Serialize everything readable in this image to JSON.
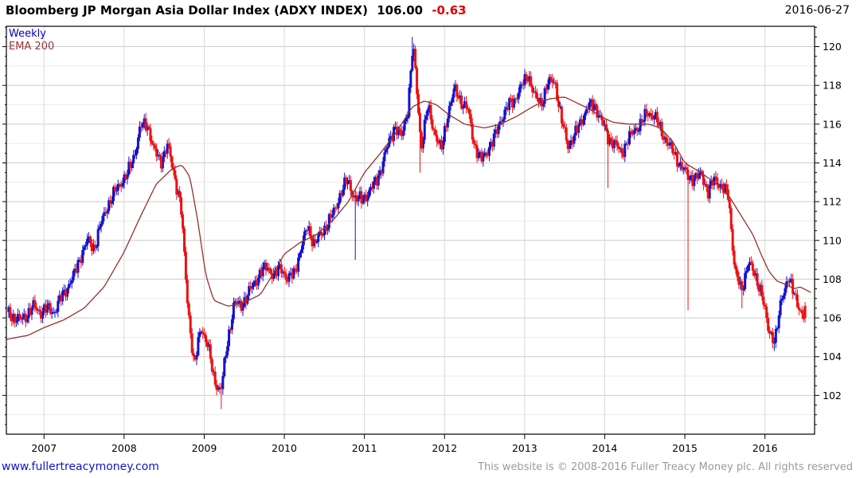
{
  "header": {
    "title": "Bloomberg JP Morgan Asia Dollar Index (ADXY INDEX)",
    "last_price": "106.00",
    "change": "-0.63",
    "date": "2016-06-27"
  },
  "legend": {
    "series_label": "Weekly",
    "ema_label": "EMA 200"
  },
  "footer": {
    "link": "www.fullertreacymoney.com",
    "copyright": "This website is © 2008-2016 Fuller Treacy Money plc. All rights reserved"
  },
  "colors": {
    "up": "#1212cf",
    "down": "#ee1111",
    "ema": "#96302c",
    "grid_minor": "#ebebeb",
    "grid_major": "#cccccc",
    "grid_vert": "#d8d8d8",
    "axis": "#000000",
    "link": "#1414cc",
    "copyright": "#9a9a9a",
    "change": "#e00000"
  },
  "chart_data": {
    "type": "candlestick",
    "title": "Bloomberg JP Morgan Asia Dollar Index (ADXY INDEX)",
    "timeframe": "Weekly",
    "overlay": "EMA 200",
    "last_close": 106.0,
    "last_change": -0.63,
    "as_of_date": "2016-06-27",
    "x_ticks": [
      2007,
      2008,
      2009,
      2010,
      2011,
      2012,
      2013,
      2014,
      2015,
      2016
    ],
    "y_ticks": [
      102,
      104,
      106,
      108,
      110,
      112,
      114,
      116,
      118,
      120
    ],
    "xlim": [
      2006.53,
      2016.62
    ],
    "ylim": [
      100.0,
      121.05
    ],
    "grid": "on",
    "price_monthly": [
      [
        2006.542,
        106.3
      ],
      [
        2006.625,
        106.0
      ],
      [
        2006.708,
        105.9
      ],
      [
        2006.792,
        106.2
      ],
      [
        2006.875,
        106.6
      ],
      [
        2006.958,
        106.3
      ],
      [
        2007.042,
        106.5
      ],
      [
        2007.125,
        106.3
      ],
      [
        2007.208,
        107.0
      ],
      [
        2007.292,
        107.6
      ],
      [
        2007.375,
        108.2
      ],
      [
        2007.458,
        109.2
      ],
      [
        2007.542,
        110.0
      ],
      [
        2007.625,
        109.6
      ],
      [
        2007.708,
        110.8
      ],
      [
        2007.792,
        111.8
      ],
      [
        2007.875,
        112.4
      ],
      [
        2007.958,
        113.0
      ],
      [
        2008.042,
        113.4
      ],
      [
        2008.125,
        114.4
      ],
      [
        2008.208,
        115.9
      ],
      [
        2008.292,
        116.0
      ],
      [
        2008.375,
        114.6
      ],
      [
        2008.458,
        114.1
      ],
      [
        2008.542,
        114.9
      ],
      [
        2008.625,
        113.4
      ],
      [
        2008.708,
        111.8
      ],
      [
        2008.792,
        106.8
      ],
      [
        2008.875,
        103.4
      ],
      [
        2008.958,
        105.6
      ],
      [
        2009.042,
        104.6
      ],
      [
        2009.125,
        102.8
      ],
      [
        2009.208,
        102.2
      ],
      [
        2009.292,
        104.8
      ],
      [
        2009.375,
        106.8
      ],
      [
        2009.458,
        106.6
      ],
      [
        2009.542,
        107.2
      ],
      [
        2009.625,
        107.8
      ],
      [
        2009.708,
        108.4
      ],
      [
        2009.792,
        108.6
      ],
      [
        2009.875,
        108.2
      ],
      [
        2009.958,
        108.6
      ],
      [
        2010.042,
        108.0
      ],
      [
        2010.125,
        108.3
      ],
      [
        2010.208,
        109.6
      ],
      [
        2010.292,
        110.7
      ],
      [
        2010.375,
        109.8
      ],
      [
        2010.458,
        110.3
      ],
      [
        2010.542,
        110.9
      ],
      [
        2010.625,
        111.5
      ],
      [
        2010.708,
        112.5
      ],
      [
        2010.792,
        113.1
      ],
      [
        2010.875,
        112.2
      ],
      [
        2010.958,
        112.1
      ],
      [
        2011.042,
        112.4
      ],
      [
        2011.125,
        112.9
      ],
      [
        2011.208,
        113.7
      ],
      [
        2011.292,
        114.9
      ],
      [
        2011.375,
        115.9
      ],
      [
        2011.458,
        115.3
      ],
      [
        2011.542,
        116.8
      ],
      [
        2011.6,
        119.8
      ],
      [
        2011.625,
        119.4
      ],
      [
        2011.708,
        114.8
      ],
      [
        2011.792,
        116.9
      ],
      [
        2011.875,
        115.6
      ],
      [
        2011.958,
        114.6
      ],
      [
        2012.042,
        116.6
      ],
      [
        2012.125,
        117.8
      ],
      [
        2012.208,
        117.2
      ],
      [
        2012.292,
        116.7
      ],
      [
        2012.375,
        114.9
      ],
      [
        2012.458,
        114.1
      ],
      [
        2012.542,
        114.7
      ],
      [
        2012.625,
        115.3
      ],
      [
        2012.708,
        116.3
      ],
      [
        2012.792,
        116.9
      ],
      [
        2012.875,
        117.3
      ],
      [
        2012.958,
        117.9
      ],
      [
        2013.042,
        118.6
      ],
      [
        2013.125,
        117.4
      ],
      [
        2013.208,
        117.1
      ],
      [
        2013.292,
        118.1
      ],
      [
        2013.375,
        118.3
      ],
      [
        2013.458,
        116.2
      ],
      [
        2013.542,
        114.9
      ],
      [
        2013.625,
        115.4
      ],
      [
        2013.708,
        116.2
      ],
      [
        2013.792,
        116.9
      ],
      [
        2013.875,
        117.0
      ],
      [
        2013.958,
        116.2
      ],
      [
        2014.042,
        115.3
      ],
      [
        2014.125,
        115.0
      ],
      [
        2014.208,
        114.5
      ],
      [
        2014.292,
        115.2
      ],
      [
        2014.375,
        115.7
      ],
      [
        2014.458,
        116.1
      ],
      [
        2014.542,
        116.6
      ],
      [
        2014.625,
        116.4
      ],
      [
        2014.708,
        115.6
      ],
      [
        2014.792,
        115.0
      ],
      [
        2014.875,
        114.4
      ],
      [
        2014.958,
        113.8
      ],
      [
        2015.042,
        113.3
      ],
      [
        2015.125,
        113.2
      ],
      [
        2015.208,
        113.4
      ],
      [
        2015.292,
        112.5
      ],
      [
        2015.375,
        113.2
      ],
      [
        2015.458,
        112.8
      ],
      [
        2015.542,
        112.3
      ],
      [
        2015.625,
        108.5
      ],
      [
        2015.708,
        107.3
      ],
      [
        2015.792,
        109.0
      ],
      [
        2015.875,
        108.1
      ],
      [
        2015.958,
        107.4
      ],
      [
        2016.042,
        105.3
      ],
      [
        2016.125,
        104.9
      ],
      [
        2016.208,
        106.9
      ],
      [
        2016.292,
        108.2
      ],
      [
        2016.375,
        107.0
      ],
      [
        2016.458,
        106.3
      ],
      [
        2016.505,
        106.0
      ]
    ],
    "spikes": [
      {
        "t": 2009.21,
        "low": 101.3
      },
      {
        "t": 2010.88,
        "low": 109.0
      },
      {
        "t": 2011.6,
        "high": 120.5
      },
      {
        "t": 2011.7,
        "low": 113.5
      },
      {
        "t": 2014.04,
        "low": 112.7
      },
      {
        "t": 2015.04,
        "low": 106.4
      },
      {
        "t": 2015.72,
        "low": 106.5
      },
      {
        "t": 2016.12,
        "low": 104.3
      }
    ],
    "ema": [
      [
        2006.535,
        104.9
      ],
      [
        2006.8,
        105.1
      ],
      [
        2007.0,
        105.5
      ],
      [
        2007.25,
        105.9
      ],
      [
        2007.5,
        106.5
      ],
      [
        2007.75,
        107.6
      ],
      [
        2008.0,
        109.4
      ],
      [
        2008.2,
        111.2
      ],
      [
        2008.4,
        112.9
      ],
      [
        2008.6,
        113.7
      ],
      [
        2008.72,
        113.9
      ],
      [
        2008.82,
        113.3
      ],
      [
        2008.92,
        111.0
      ],
      [
        2009.02,
        108.2
      ],
      [
        2009.12,
        106.9
      ],
      [
        2009.3,
        106.6
      ],
      [
        2009.5,
        106.8
      ],
      [
        2009.7,
        107.2
      ],
      [
        2009.85,
        108.2
      ],
      [
        2010.0,
        109.3
      ],
      [
        2010.2,
        109.9
      ],
      [
        2010.4,
        110.3
      ],
      [
        2010.6,
        111.0
      ],
      [
        2010.8,
        112.0
      ],
      [
        2011.0,
        113.5
      ],
      [
        2011.2,
        114.5
      ],
      [
        2011.4,
        115.6
      ],
      [
        2011.6,
        116.9
      ],
      [
        2011.75,
        117.2
      ],
      [
        2011.9,
        117.0
      ],
      [
        2012.05,
        116.5
      ],
      [
        2012.25,
        116.0
      ],
      [
        2012.5,
        115.8
      ],
      [
        2012.7,
        116.0
      ],
      [
        2012.9,
        116.4
      ],
      [
        2013.1,
        116.9
      ],
      [
        2013.3,
        117.3
      ],
      [
        2013.5,
        117.4
      ],
      [
        2013.65,
        117.1
      ],
      [
        2013.8,
        116.8
      ],
      [
        2013.95,
        116.4
      ],
      [
        2014.1,
        116.1
      ],
      [
        2014.3,
        116.0
      ],
      [
        2014.55,
        116.0
      ],
      [
        2014.7,
        115.8
      ],
      [
        2014.85,
        115.1
      ],
      [
        2015.0,
        114.0
      ],
      [
        2015.2,
        113.5
      ],
      [
        2015.4,
        112.9
      ],
      [
        2015.55,
        112.3
      ],
      [
        2015.7,
        111.3
      ],
      [
        2015.85,
        110.3
      ],
      [
        2015.95,
        109.3
      ],
      [
        2016.05,
        108.4
      ],
      [
        2016.15,
        107.9
      ],
      [
        2016.28,
        107.7
      ],
      [
        2016.36,
        107.5
      ],
      [
        2016.44,
        107.6
      ],
      [
        2016.58,
        107.3
      ]
    ]
  }
}
